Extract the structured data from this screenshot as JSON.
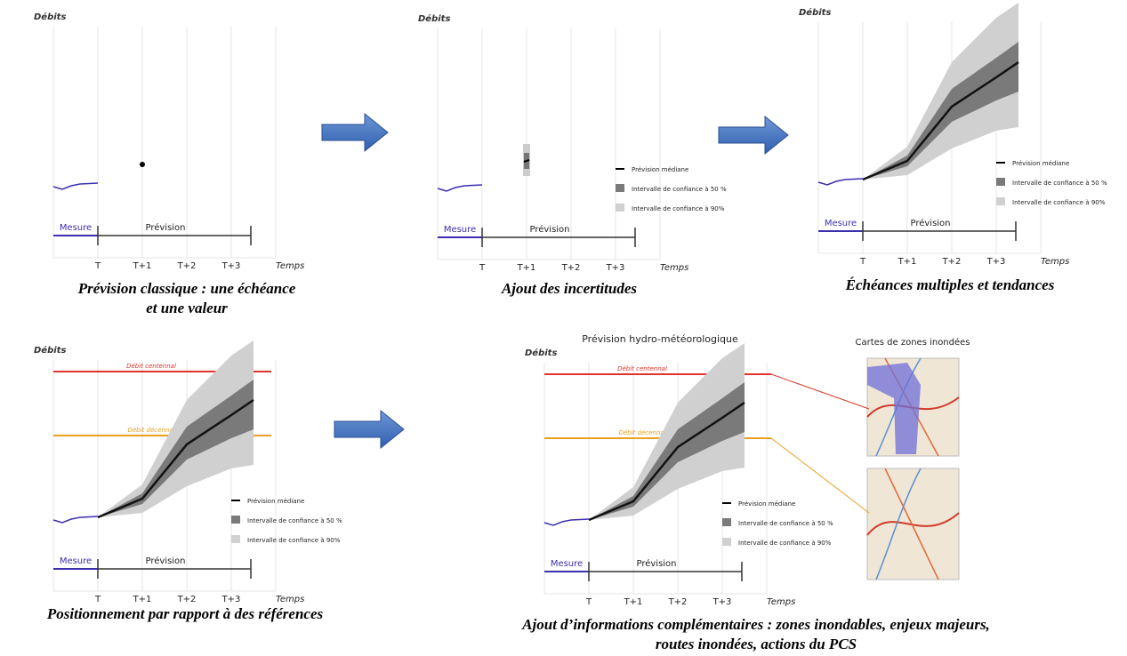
{
  "panels": [
    {
      "y_label": "Débits",
      "x_labels": [
        "T",
        "T+1",
        "T+2",
        "T+3"
      ],
      "x_title": "Temps",
      "measure": "Mesure",
      "forecast": "Prévision",
      "caption": [
        "Prévision classique : une échéance",
        "et une valeur"
      ]
    },
    {
      "y_label": "Débits",
      "x_labels": [
        "T",
        "T+1",
        "T+2",
        "T+3"
      ],
      "x_title": "Temps",
      "measure": "Mesure",
      "forecast": "Prévision",
      "legend": [
        "Prévision  médiane",
        "Intervalle de confiance à 50 %",
        "Intervalle de confiance à 90%"
      ],
      "caption": [
        "Ajout des incertitudes"
      ]
    },
    {
      "y_label": "Débits",
      "x_labels": [
        "T",
        "T+1",
        "T+2",
        "T+3"
      ],
      "x_title": "Temps",
      "measure": "Mesure",
      "forecast": "Prévision",
      "legend": [
        "Prévision  médiane",
        "Intervalle de confiance à 50 %",
        "Intervalle de confiance à 90%"
      ],
      "caption": [
        "Échéances multiples et tendances"
      ]
    },
    {
      "y_label": "Débits",
      "x_labels": [
        "T",
        "T+1",
        "T+2",
        "T+3"
      ],
      "x_title": "Temps",
      "measure": "Mesure",
      "forecast": "Prévision",
      "legend": [
        "Prévision  médiane",
        "Intervalle de confiance à 50 %",
        "Intervalle de confiance à 90%"
      ],
      "references": [
        "Débit centennal",
        "Débit décennal"
      ],
      "caption": [
        "Positionnement par rapport à des références"
      ]
    },
    {
      "title": "Prévision hydro-météorologique",
      "maps_title": "Cartes de zones inondées",
      "y_label": "Débits",
      "x_labels": [
        "T",
        "T+1",
        "T+2",
        "T+3"
      ],
      "x_title": "Temps",
      "measure": "Mesure",
      "forecast": "Prévision",
      "legend": [
        "Prévision  médiane",
        "Intervalle de confiance à 50 %",
        "Intervalle de confiance à 90%"
      ],
      "references": [
        "Débit centennal",
        "Débit décennal"
      ],
      "caption": [
        "Ajout d’informations complémentaires : zones inondables, enjeux majeurs,",
        "routes inondées, actions du PCS"
      ]
    }
  ]
}
